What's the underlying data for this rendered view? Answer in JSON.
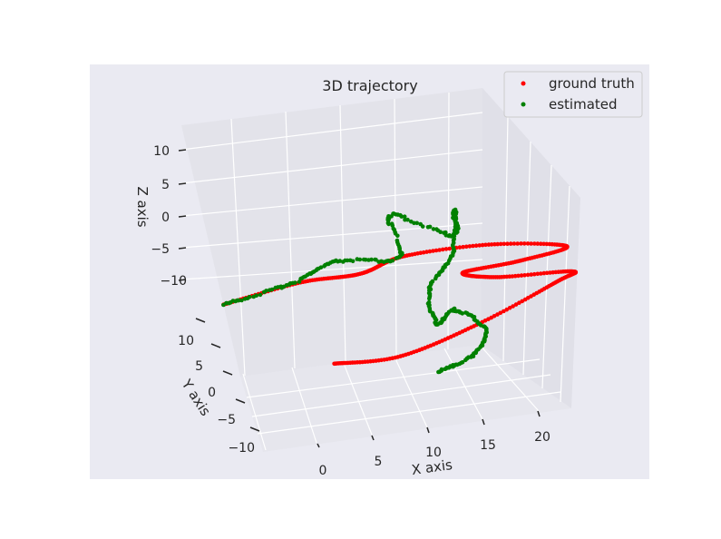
{
  "chart_data": {
    "type": "scatter",
    "projection": "3d",
    "title": "3D trajectory",
    "xlabel": "X axis",
    "ylabel": "Y axis",
    "zlabel": "Z axis",
    "x_ticks": [
      "0",
      "5",
      "10",
      "15",
      "20"
    ],
    "y_ticks": [
      "10",
      "5",
      "0",
      "−5",
      "−10"
    ],
    "z_ticks": [
      "10",
      "5",
      "0",
      "−5",
      "−10"
    ],
    "grid": true,
    "legend_position": "top-right",
    "series": [
      {
        "name": "ground truth",
        "color": "#ff0000",
        "points": [
          [
            -10,
            5,
            -4
          ],
          [
            -2,
            6,
            -3
          ],
          [
            5,
            8,
            -4
          ],
          [
            10,
            9,
            -3
          ],
          [
            18,
            9,
            -3
          ],
          [
            24,
            8,
            -4
          ],
          [
            18,
            6,
            -4
          ],
          [
            12,
            5,
            -4
          ],
          [
            12,
            1,
            -3
          ],
          [
            18,
            0,
            -3
          ],
          [
            15,
            -2,
            -3
          ],
          [
            6,
            -4,
            -6
          ],
          [
            0,
            -2,
            -10
          ],
          [
            -3,
            2,
            -12
          ]
        ]
      },
      {
        "name": "estimated",
        "color": "#008000",
        "points": [
          [
            -10,
            5,
            -4
          ],
          [
            -3,
            6,
            -3
          ],
          [
            3,
            8,
            -2
          ],
          [
            8,
            7,
            -2
          ],
          [
            10,
            10,
            2
          ],
          [
            13,
            7,
            0
          ],
          [
            15,
            9,
            2
          ],
          [
            12,
            6,
            -2
          ],
          [
            8,
            4,
            -5
          ],
          [
            6,
            1,
            -8
          ],
          [
            7,
            0,
            -6
          ],
          [
            8,
            -2,
            -8
          ],
          [
            5,
            -4,
            -10
          ],
          [
            1,
            -5,
            -11
          ]
        ]
      }
    ]
  }
}
